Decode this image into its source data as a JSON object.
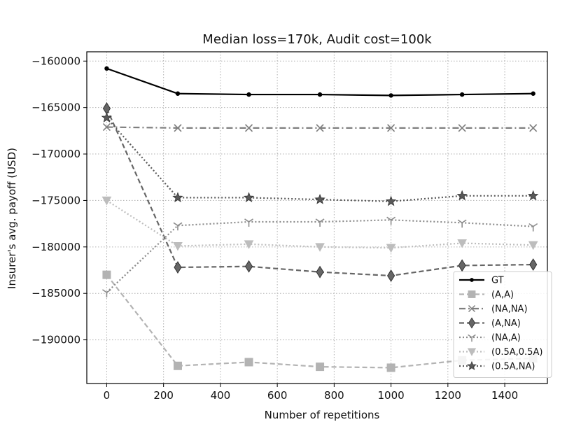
{
  "chart_data": {
    "type": "line",
    "title": "Median loss=170k, Audit cost=100k",
    "xlabel": "Number of repetitions",
    "ylabel": "Insurer's avg. payoff (USD)",
    "xlim": [
      -70,
      1550
    ],
    "ylim": [
      -194700,
      -159000
    ],
    "x_ticks": [
      0,
      200,
      400,
      600,
      800,
      1000,
      1200,
      1400
    ],
    "y_ticks": [
      -160000,
      -165000,
      -170000,
      -175000,
      -180000,
      -185000,
      -190000
    ],
    "grid": true,
    "legend_position": "lower-right",
    "x": [
      0,
      250,
      500,
      750,
      1000,
      1250,
      1500
    ],
    "series": [
      {
        "name": "GT",
        "values": [
          -160800,
          -163500,
          -163600,
          -163600,
          -163700,
          -163600,
          -163500
        ],
        "color": "#000000",
        "marker": "dot",
        "linestyle": "solid"
      },
      {
        "name": "(A,A)",
        "values": [
          -183000,
          -192800,
          -192400,
          -192900,
          -193000,
          -192200,
          -192000
        ],
        "color": "#b3b3b3",
        "marker": "square",
        "linestyle": "dashed"
      },
      {
        "name": "(NA,NA)",
        "values": [
          -167100,
          -167200,
          -167200,
          -167200,
          -167200,
          -167200,
          -167200
        ],
        "color": "#7f7f7f",
        "marker": "x",
        "linestyle": "dashdot"
      },
      {
        "name": "(A,NA)",
        "values": [
          -165100,
          -182200,
          -182100,
          -182700,
          -183100,
          -182000,
          -181900
        ],
        "color": "#666666",
        "marker": "diamond",
        "linestyle": "dashed"
      },
      {
        "name": "(NA,A)",
        "values": [
          -184900,
          -177700,
          -177300,
          -177300,
          -177100,
          -177400,
          -177800
        ],
        "color": "#8c8c8c",
        "marker": "tri",
        "linestyle": "dotted"
      },
      {
        "name": "(0.5A,0.5A)",
        "values": [
          -175000,
          -179900,
          -179700,
          -180000,
          -180100,
          -179600,
          -179800
        ],
        "color": "#bdbdbd",
        "marker": "triangle-down",
        "linestyle": "dotted"
      },
      {
        "name": "(0.5A,NA)",
        "values": [
          -166100,
          -174700,
          -174700,
          -174900,
          -175100,
          -174500,
          -174500
        ],
        "color": "#595959",
        "marker": "star",
        "linestyle": "dotted"
      }
    ]
  }
}
